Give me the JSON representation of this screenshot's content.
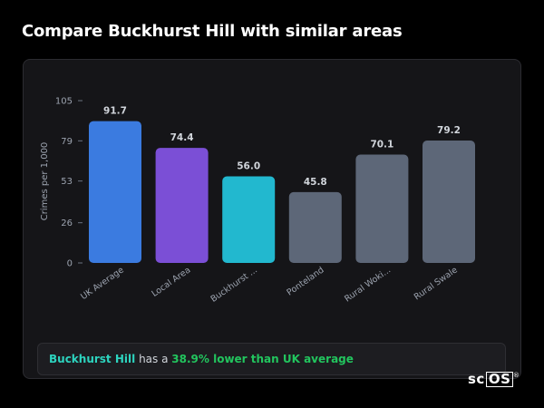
{
  "page": {
    "title": "Compare Buckhurst Hill with similar areas"
  },
  "chart_data": {
    "type": "bar",
    "ylabel": "Crimes per 1,000",
    "ylim": [
      0,
      105
    ],
    "yticks": [
      0,
      26,
      53,
      79,
      105
    ],
    "grid": false,
    "categories": [
      "UK Average",
      "Local Area",
      "Buckhurst ...",
      "Ponteland",
      "Rural Woki...",
      "Rural Swale"
    ],
    "values": [
      91.7,
      74.4,
      56.0,
      45.8,
      70.1,
      79.2
    ],
    "value_labels": [
      "91.7",
      "74.4",
      "56.0",
      "45.8",
      "70.1",
      "79.2"
    ],
    "colors": [
      "#3b7be0",
      "#7b4fd6",
      "#22b8cf",
      "#5d6778",
      "#5d6778",
      "#5d6778"
    ]
  },
  "summary": {
    "area": "Buckhurst Hill",
    "middle": "has a",
    "difference": "38.9% lower than UK average"
  },
  "logo": {
    "prefix": "sc",
    "boxed": "OS",
    "mark": "®"
  }
}
